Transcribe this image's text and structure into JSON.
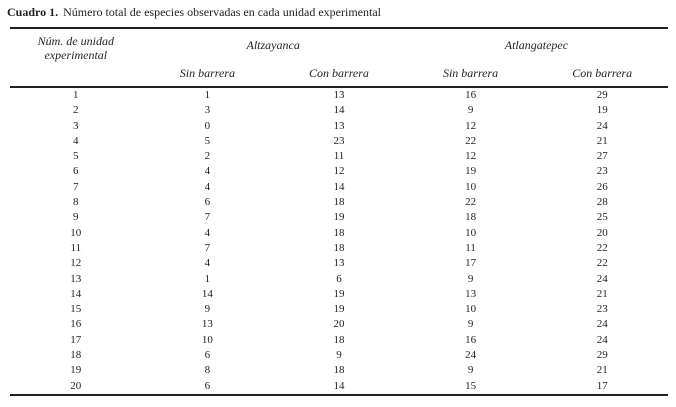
{
  "caption": {
    "label": "Cuadro 1.",
    "text": "Número total de especies observadas en cada unidad experimental"
  },
  "table": {
    "unit_header_line1": "Núm. de unidad",
    "unit_header_line2": "experimental",
    "groups": [
      {
        "label": "Altzayanca"
      },
      {
        "label": "Atlangatepec"
      }
    ],
    "subheaders": [
      "Sin barrera",
      "Con barrera",
      "Sin barrera",
      "Con barrera"
    ],
    "rows": [
      [
        1,
        1,
        13,
        16,
        29
      ],
      [
        2,
        3,
        14,
        9,
        19
      ],
      [
        3,
        0,
        13,
        12,
        24
      ],
      [
        4,
        5,
        23,
        22,
        21
      ],
      [
        5,
        2,
        11,
        12,
        27
      ],
      [
        6,
        4,
        12,
        19,
        23
      ],
      [
        7,
        4,
        14,
        10,
        26
      ],
      [
        8,
        6,
        18,
        22,
        28
      ],
      [
        9,
        7,
        19,
        18,
        25
      ],
      [
        10,
        4,
        18,
        10,
        20
      ],
      [
        11,
        7,
        18,
        11,
        22
      ],
      [
        12,
        4,
        13,
        17,
        22
      ],
      [
        13,
        1,
        6,
        9,
        24
      ],
      [
        14,
        14,
        19,
        13,
        21
      ],
      [
        15,
        9,
        19,
        10,
        23
      ],
      [
        16,
        13,
        20,
        9,
        24
      ],
      [
        17,
        10,
        18,
        16,
        24
      ],
      [
        18,
        6,
        9,
        24,
        29
      ],
      [
        19,
        8,
        18,
        9,
        21
      ],
      [
        20,
        6,
        14,
        15,
        17
      ]
    ]
  },
  "colors": {
    "text": "#1f1f1f",
    "rule": "#1f1f1f",
    "background": "#ffffff"
  }
}
